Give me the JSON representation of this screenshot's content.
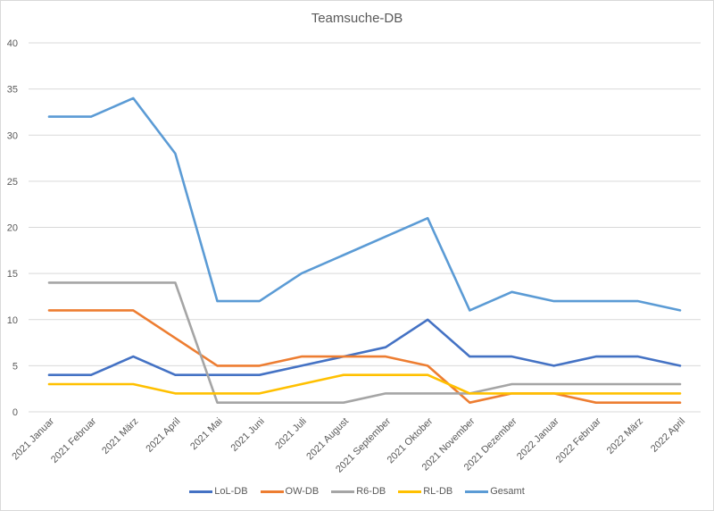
{
  "chart_data": {
    "type": "line",
    "title": "Teamsuche-DB",
    "xlabel": "",
    "ylabel": "",
    "ylim": [
      0,
      40
    ],
    "yticks": [
      0,
      5,
      10,
      15,
      20,
      25,
      30,
      35,
      40
    ],
    "grid": true,
    "legend_position": "bottom",
    "categories": [
      "2021 Januar",
      "2021 Februar",
      "2021 März",
      "2021 April",
      "2021 Mai",
      "2021 Juni",
      "2021 Juli",
      "2021 August",
      "2021 September",
      "2021 Oktober",
      "2021 November",
      "2021 Dezember",
      "2022 Januar",
      "2022 Februar",
      "2022 März",
      "2022 April"
    ],
    "series": [
      {
        "name": "LoL-DB",
        "color": "#4472c4",
        "values": [
          4,
          4,
          6,
          4,
          4,
          4,
          5,
          6,
          7,
          10,
          6,
          6,
          5,
          6,
          6,
          5
        ]
      },
      {
        "name": "OW-DB",
        "color": "#ed7d31",
        "values": [
          11,
          11,
          11,
          8,
          5,
          5,
          6,
          6,
          6,
          5,
          1,
          2,
          2,
          1,
          1,
          1
        ]
      },
      {
        "name": "R6-DB",
        "color": "#a5a5a5",
        "values": [
          14,
          14,
          14,
          14,
          1,
          1,
          1,
          1,
          2,
          2,
          2,
          3,
          3,
          3,
          3,
          3
        ]
      },
      {
        "name": "RL-DB",
        "color": "#ffc000",
        "values": [
          3,
          3,
          3,
          2,
          2,
          2,
          3,
          4,
          4,
          4,
          2,
          2,
          2,
          2,
          2,
          2
        ]
      },
      {
        "name": "Gesamt",
        "color": "#5b9bd5",
        "values": [
          32,
          32,
          34,
          28,
          12,
          12,
          15,
          17,
          19,
          21,
          11,
          13,
          12,
          12,
          12,
          11
        ]
      }
    ]
  }
}
